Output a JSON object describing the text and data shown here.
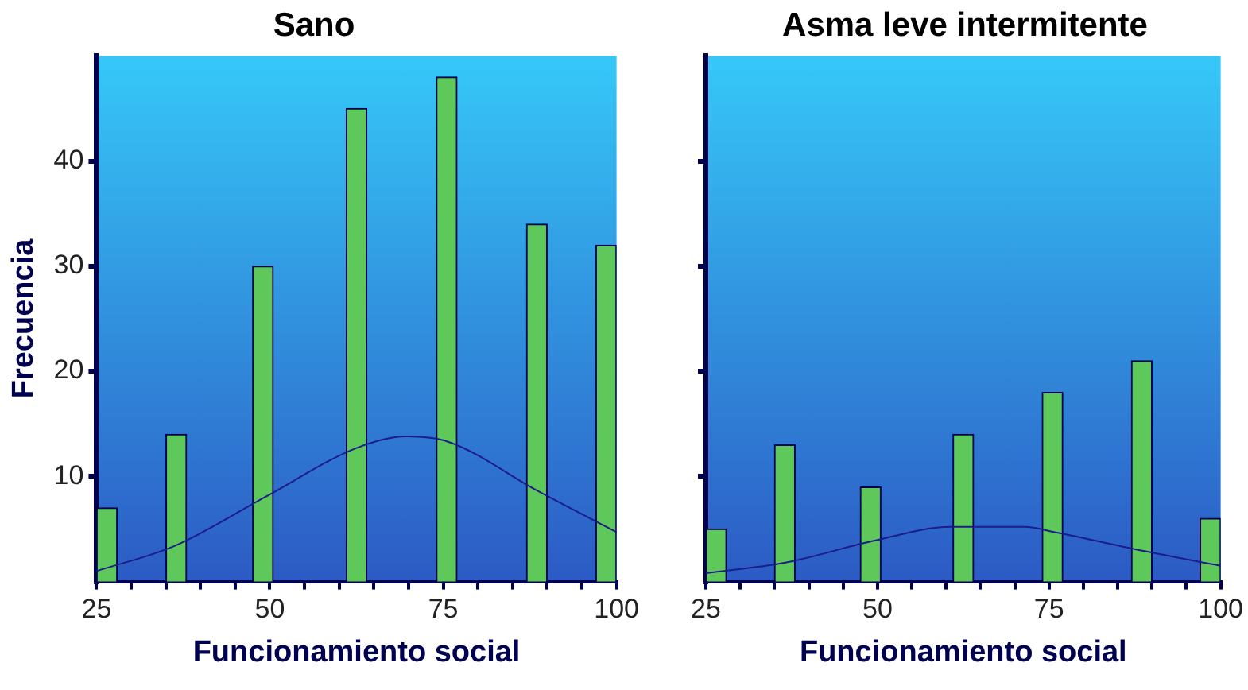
{
  "chart_data": [
    {
      "type": "bar",
      "title": "Sano",
      "xlabel": "Funcionamiento social",
      "ylabel": "Frecuencia",
      "xlim": [
        25,
        100
      ],
      "xticks": [
        25,
        {
          "value": 30,
          "label": null
        },
        {
          "value": 35,
          "label": null
        },
        {
          "value": 40,
          "label": null
        },
        {
          "value": 45,
          "label": null
        },
        50,
        {
          "value": 55,
          "label": null
        },
        {
          "value": 60,
          "label": null
        },
        {
          "value": 65,
          "label": null
        },
        {
          "value": 70,
          "label": null
        },
        75,
        {
          "value": 80,
          "label": null
        },
        {
          "value": 85,
          "label": null
        },
        {
          "value": 90,
          "label": null
        },
        {
          "value": 95,
          "label": null
        },
        100
      ],
      "ylim": [
        0,
        50
      ],
      "yticks": [
        10,
        20,
        30,
        40
      ],
      "series": [
        {
          "color": "#5ec85a",
          "x": [
            26.5,
            36.5,
            49,
            62.5,
            75.5,
            88.5,
            98.5
          ],
          "values": [
            7,
            14,
            30,
            45,
            48,
            34,
            32
          ]
        },
        {
          "type": "line",
          "color": "#1c1c8a",
          "x": [
            25,
            36.3,
            49.5,
            62.5,
            69.7,
            75.7,
            88.7,
            100
          ],
          "values": [
            1.0,
            3.4,
            8.1,
            12.7,
            13.8,
            13.3,
            8.6,
            4.7
          ]
        }
      ]
    },
    {
      "type": "bar",
      "title": "Asma leve intermitente",
      "xlabel": "Funcionamiento social",
      "tick_labels": "x",
      "xlim": [
        25,
        100
      ],
      "xticks": [
        25,
        {
          "value": 30,
          "label": null
        },
        {
          "value": 35,
          "label": null
        },
        {
          "value": 40,
          "label": null
        },
        {
          "value": 45,
          "label": null
        },
        50,
        {
          "value": 55,
          "label": null
        },
        {
          "value": 60,
          "label": null
        },
        {
          "value": 65,
          "label": null
        },
        {
          "value": 70,
          "label": null
        },
        75,
        {
          "value": 80,
          "label": null
        },
        {
          "value": 85,
          "label": null
        },
        {
          "value": 90,
          "label": null
        },
        {
          "value": 95,
          "label": null
        },
        100
      ],
      "ylim": [
        0,
        50
      ],
      "yticks": [
        10,
        20,
        30,
        40
      ],
      "series": [
        {
          "color": "#5ec85a",
          "x": [
            26.5,
            36.5,
            49,
            62.5,
            75.5,
            88.5,
            98.5
          ],
          "values": [
            5,
            13,
            9,
            14,
            18,
            21,
            6
          ]
        },
        {
          "type": "line",
          "color": "#1c1c8a",
          "x": [
            25,
            36.6,
            49.6,
            60.6,
            71.4,
            75.8,
            88.9,
            100
          ],
          "values": [
            0.8,
            1.8,
            3.9,
            5.2,
            5.2,
            4.7,
            2.9,
            1.5
          ]
        }
      ]
    }
  ]
}
